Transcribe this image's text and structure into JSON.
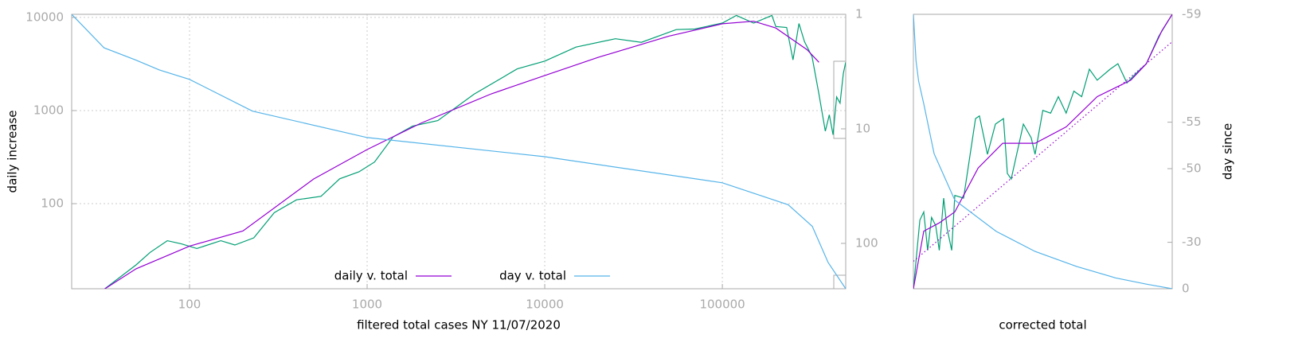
{
  "chart_data": [
    {
      "type": "line",
      "xlabel": "filtered total cases NY 11/07/2020",
      "ylabel": "daily increase",
      "xscale": "log",
      "yscale": "log",
      "y2scale": "log",
      "y2reverse": true,
      "grid": true,
      "legend": "bottom-center",
      "xlim": [
        21.7,
        495000
      ],
      "ylim": [
        12.2,
        10800
      ],
      "y2lim": [
        1,
        249
      ],
      "xticks": [
        100,
        1000,
        10000,
        100000
      ],
      "yticks": [
        100,
        1000,
        10000
      ],
      "y2ticks": [
        1,
        10,
        100
      ],
      "series": [
        {
          "color": "#009e73",
          "x": [
            33,
            50,
            60,
            75,
            90,
            110,
            150,
            180,
            230,
            300,
            400,
            550,
            700,
            900,
            1100,
            1400,
            1800,
            2500,
            4000,
            7000,
            10000,
            15000,
            25000,
            35000,
            55000,
            70000,
            100000,
            120000,
            150000,
            190000,
            200000,
            230000,
            250000,
            270000,
            290000,
            320000,
            350000,
            380000,
            400000,
            420000,
            440000,
            460000,
            480000,
            495000
          ],
          "values": [
            12,
            22,
            30,
            40,
            37,
            33,
            40,
            36,
            43,
            80,
            110,
            120,
            185,
            220,
            280,
            520,
            680,
            780,
            1500,
            2800,
            3400,
            4800,
            5900,
            5400,
            7400,
            7500,
            8700,
            10500,
            8700,
            10500,
            8000,
            7800,
            3500,
            8600,
            5500,
            3800,
            1500,
            600,
            900,
            550,
            1400,
            1200,
            2500,
            3300
          ]
        },
        {
          "name": "daily v. total",
          "color": "#9400d3",
          "x": [
            33,
            50,
            100,
            200,
            500,
            1000,
            2000,
            5000,
            10000,
            20000,
            50000,
            100000,
            150000,
            200000,
            300000,
            350000
          ],
          "values": [
            12,
            20,
            35,
            51,
            184,
            381,
            730,
            1510,
            2380,
            3730,
            6300,
            8540,
            9100,
            7700,
            4500,
            3300
          ]
        },
        {
          "name": "day v. total",
          "color": "#56b4e9",
          "axis": "y2",
          "x": [
            21.7,
            33,
            49.6,
            67.6,
            100,
            226,
            1000,
            10000,
            100000,
            235000,
            321000,
            394000,
            495000
          ],
          "values": [
            1,
            1.96,
            2.5,
            3.06,
            3.7,
            7.0,
            11.9,
            17.5,
            29.6,
            46,
            71,
            147,
            249
          ]
        }
      ]
    },
    {
      "type": "line",
      "xlabel": "corrected total",
      "y2label": "day since",
      "y2scale": "log-shift",
      "y2reverse": true,
      "grid": false,
      "xlim": [
        0,
        100
      ],
      "ylim": [
        0,
        100
      ],
      "y2lim": [
        -59,
        0
      ],
      "y2ticks": [
        -59,
        -55,
        -50,
        -30,
        0
      ],
      "series": [
        {
          "color": "#009e73",
          "x": [
            0,
            2.5,
            4,
            5.5,
            7,
            8.6,
            10,
            11.7,
            13,
            14.8,
            16,
            19.4,
            24,
            25.5,
            28.6,
            31.7,
            34.8,
            36.3,
            37.8,
            42.5,
            45.5,
            47,
            50,
            53,
            56,
            59,
            62,
            65,
            68,
            71,
            76,
            79,
            82.5,
            85.5,
            90,
            94.8,
            100
          ],
          "values": [
            0,
            25,
            28,
            14,
            26,
            23,
            14,
            33,
            22,
            14,
            34,
            33,
            62,
            63,
            49,
            60,
            62,
            42,
            40,
            60,
            55,
            49,
            65,
            64,
            70,
            64,
            72,
            70,
            80,
            76,
            80,
            82,
            75,
            78,
            82,
            92,
            100
          ]
        },
        {
          "color": "#9400d3",
          "x": [
            0,
            4,
            10,
            16,
            25,
            34.5,
            47,
            59,
            71,
            84,
            90,
            96,
            100
          ],
          "values": [
            0,
            21,
            24,
            28,
            44,
            53,
            53,
            59,
            70,
            76,
            82,
            94,
            100
          ]
        },
        {
          "color": "#9400d3",
          "dash": true,
          "x": [
            0,
            100
          ],
          "values": [
            10,
            90
          ]
        },
        {
          "color": "#56b4e9",
          "axis": "y2",
          "x": [
            0,
            1,
            2,
            4,
            8,
            16,
            32,
            47,
            63,
            78,
            90,
            100
          ],
          "values": [
            -59,
            -58,
            -57.3,
            -56.2,
            -52,
            -44,
            -34.5,
            -25.6,
            -17,
            -9,
            -4,
            0
          ]
        }
      ]
    }
  ]
}
